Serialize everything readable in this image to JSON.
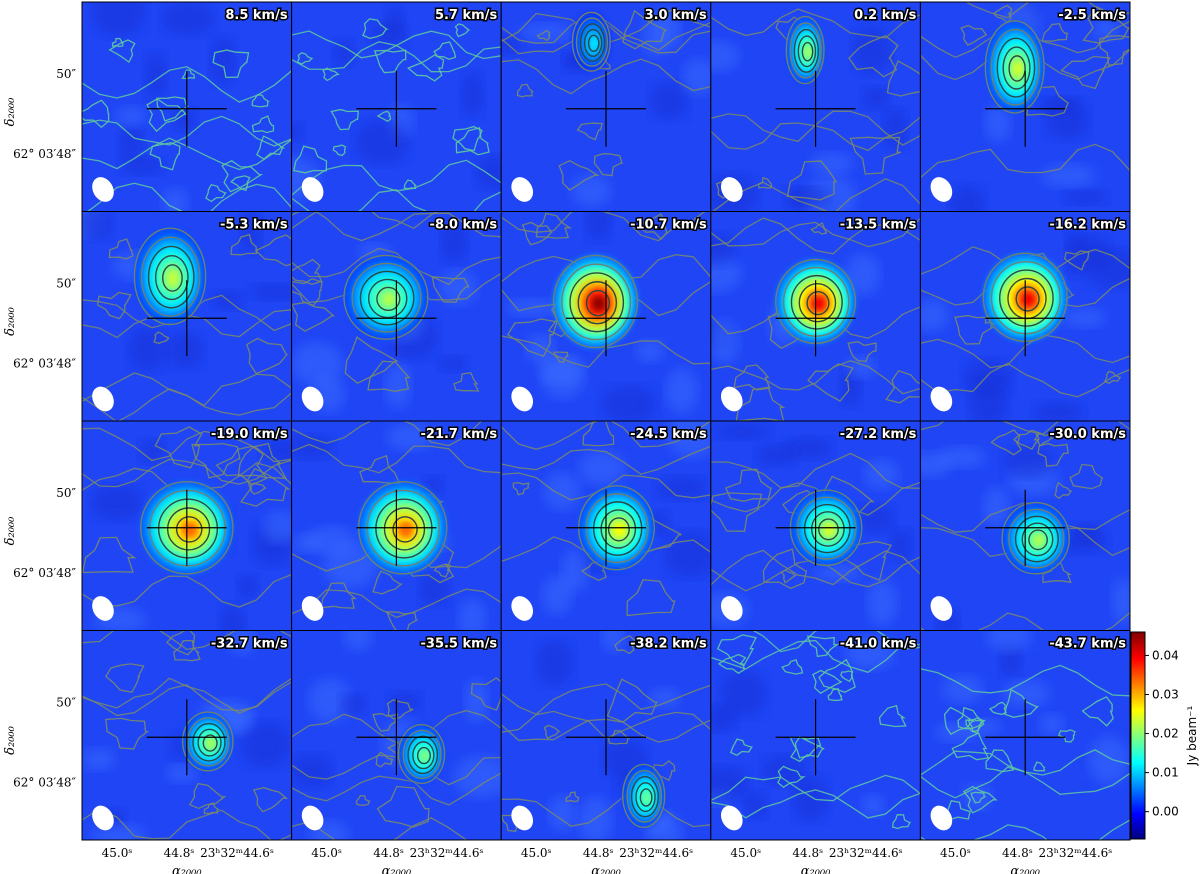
{
  "chart_data": {
    "type": "heatmap",
    "description_layout": "channel maps, 4 rows x 5 columns",
    "panels": [
      {
        "velocity_label": "8.5 km/s",
        "emission": null,
        "peak": 0.0
      },
      {
        "velocity_label": "5.7 km/s",
        "emission": null,
        "peak": 0.0
      },
      {
        "velocity_label": "3.0 km/s",
        "emission": {
          "dx": -0.07,
          "dy": -0.32,
          "rx": 0.09,
          "ry": 0.14
        },
        "peak": 0.012
      },
      {
        "velocity_label": "0.2 km/s",
        "emission": {
          "dx": -0.05,
          "dy": -0.28,
          "rx": 0.09,
          "ry": 0.16
        },
        "peak": 0.022
      },
      {
        "velocity_label": "-2.5 km/s",
        "emission": {
          "dx": -0.05,
          "dy": -0.2,
          "rx": 0.14,
          "ry": 0.22
        },
        "peak": 0.024
      },
      {
        "velocity_label": "-5.3 km/s",
        "emission": {
          "dx": -0.08,
          "dy": -0.2,
          "rx": 0.17,
          "ry": 0.23
        },
        "peak": 0.023
      },
      {
        "velocity_label": "-8.0 km/s",
        "emission": {
          "dx": -0.05,
          "dy": -0.1,
          "rx": 0.2,
          "ry": 0.2
        },
        "peak": 0.022
      },
      {
        "velocity_label": "-10.7 km/s",
        "emission": {
          "dx": -0.05,
          "dy": -0.08,
          "rx": 0.2,
          "ry": 0.22
        },
        "peak": 0.045
      },
      {
        "velocity_label": "-13.5 km/s",
        "emission": {
          "dx": 0.0,
          "dy": -0.08,
          "rx": 0.19,
          "ry": 0.2
        },
        "peak": 0.04
      },
      {
        "velocity_label": "-16.2 km/s",
        "emission": {
          "dx": 0.0,
          "dy": -0.1,
          "rx": 0.2,
          "ry": 0.21
        },
        "peak": 0.04
      },
      {
        "velocity_label": "-19.0 km/s",
        "emission": {
          "dx": 0.0,
          "dy": 0.0,
          "rx": 0.22,
          "ry": 0.22
        },
        "peak": 0.034
      },
      {
        "velocity_label": "-21.7 km/s",
        "emission": {
          "dx": 0.03,
          "dy": 0.0,
          "rx": 0.21,
          "ry": 0.22
        },
        "peak": 0.034
      },
      {
        "velocity_label": "-24.5 km/s",
        "emission": {
          "dx": 0.05,
          "dy": 0.0,
          "rx": 0.18,
          "ry": 0.2
        },
        "peak": 0.026
      },
      {
        "velocity_label": "-27.2 km/s",
        "emission": {
          "dx": 0.05,
          "dy": 0.0,
          "rx": 0.17,
          "ry": 0.18
        },
        "peak": 0.024
      },
      {
        "velocity_label": "-30.0 km/s",
        "emission": {
          "dx": 0.05,
          "dy": 0.05,
          "rx": 0.16,
          "ry": 0.17
        },
        "peak": 0.022
      },
      {
        "velocity_label": "-32.7 km/s",
        "emission": {
          "dx": 0.1,
          "dy": 0.02,
          "rx": 0.12,
          "ry": 0.14
        },
        "peak": 0.022
      },
      {
        "velocity_label": "-35.5 km/s",
        "emission": {
          "dx": 0.12,
          "dy": 0.08,
          "rx": 0.11,
          "ry": 0.14
        },
        "peak": 0.02
      },
      {
        "velocity_label": "-38.2 km/s",
        "emission": {
          "dx": 0.18,
          "dy": 0.28,
          "rx": 0.1,
          "ry": 0.15
        },
        "peak": 0.019
      },
      {
        "velocity_label": "-41.0 km/s",
        "emission": null,
        "peak": 0.0
      },
      {
        "velocity_label": "-43.7 km/s",
        "emission": null,
        "peak": 0.0
      }
    ],
    "xaxis": {
      "label": "α₂₀₀₀",
      "ticks": [
        "45.0ˢ",
        "44.8ˢ",
        "23ʰ32ᵐ44.6ˢ"
      ]
    },
    "yaxis": {
      "label": "δ₂₀₀₀",
      "ticks": [
        "50″",
        "62° 03′48″"
      ]
    },
    "colorbar": {
      "label": "Jy beam⁻¹",
      "ticks": [
        "0.04",
        "0.03",
        "0.02",
        "0.01",
        "0.00"
      ],
      "range": [
        -0.007,
        0.046
      ],
      "colormap": "jet"
    }
  }
}
